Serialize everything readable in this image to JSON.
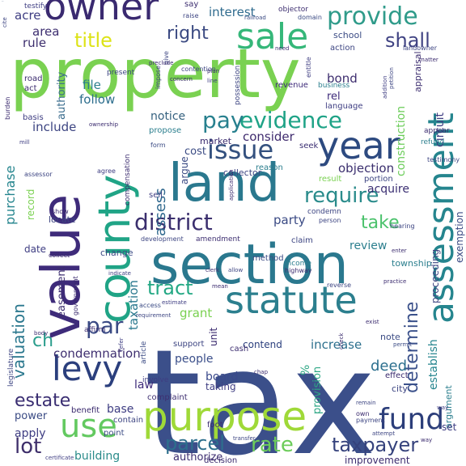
{
  "cloud": {
    "words": [
      {
        "text": "tax",
        "color": "#3b4f8a"
      },
      {
        "text": "property",
        "color": "#7ad151"
      },
      {
        "text": "land",
        "color": "#2a788e"
      },
      {
        "text": "section",
        "color": "#2a788e"
      },
      {
        "text": "value",
        "color": "#3e2b7a"
      },
      {
        "text": "county",
        "color": "#20a486"
      },
      {
        "text": "purpose",
        "color": "#9fd938"
      },
      {
        "text": "assessment",
        "color": "#25858e"
      },
      {
        "text": "statute",
        "color": "#2c7f8e"
      },
      {
        "text": "owner",
        "color": "#3a2a70"
      },
      {
        "text": "sale",
        "color": "#35b779"
      },
      {
        "text": "year",
        "color": "#2d4a80"
      },
      {
        "text": "levy",
        "color": "#2b3f7d"
      },
      {
        "text": "use",
        "color": "#63c960"
      },
      {
        "text": "provide",
        "color": "#2f9b8a"
      },
      {
        "text": "fund",
        "color": "#2c3e7a"
      },
      {
        "text": "district",
        "color": "#3b2f6e"
      },
      {
        "text": "evidence",
        "color": "#1fa387"
      },
      {
        "text": "issue",
        "color": "#34517f"
      },
      {
        "text": "pay",
        "color": "#27808e"
      },
      {
        "text": "par",
        "color": "#3a4a84"
      },
      {
        "text": "require",
        "color": "#2a8b8b"
      },
      {
        "text": "rate",
        "color": "#6ccc5a"
      },
      {
        "text": "taxpayer",
        "color": "#35427c"
      },
      {
        "text": "parcel",
        "color": "#2d6f8d"
      },
      {
        "text": "estate",
        "color": "#3a2e72"
      },
      {
        "text": "lot",
        "color": "#3f2f6b"
      },
      {
        "text": "shall",
        "color": "#404383"
      },
      {
        "text": "right",
        "color": "#3b4a82"
      },
      {
        "text": "title",
        "color": "#dde318"
      },
      {
        "text": "tract",
        "color": "#23a884"
      },
      {
        "text": "take",
        "color": "#4bc26c"
      },
      {
        "text": "valuation",
        "color": "#2b788e"
      },
      {
        "text": "ch",
        "color": "#2a9d8c"
      },
      {
        "text": "determine",
        "color": "#3b518b"
      },
      {
        "text": "condemnation",
        "color": "#3f2f70"
      },
      {
        "text": "assess",
        "color": "#30698e"
      },
      {
        "text": "taxation",
        "color": "#2a788e"
      },
      {
        "text": "purchase",
        "color": "#25858e"
      },
      {
        "text": "grant",
        "color": "#7ad151"
      },
      {
        "text": "building",
        "color": "#2a8b8a"
      },
      {
        "text": "deed",
        "color": "#2c6f8e"
      },
      {
        "text": "board",
        "color": "#3b4a8c"
      },
      {
        "text": "authority",
        "color": "#3a6c8d"
      },
      {
        "text": "include",
        "color": "#3d4582"
      },
      {
        "text": "construction",
        "color": "#6ccd5a"
      },
      {
        "text": "objection",
        "color": "#3b2f6e"
      },
      {
        "text": "consider",
        "color": "#3f2b6e"
      },
      {
        "text": "market",
        "color": "#3a2a6e"
      },
      {
        "text": "interest",
        "color": "#2f6b8e"
      },
      {
        "text": "bond",
        "color": "#3d2d6e"
      },
      {
        "text": "acre",
        "color": "#3e3d82"
      },
      {
        "text": "area",
        "color": "#3d2e70"
      },
      {
        "text": "rule",
        "color": "#3d2f6e"
      },
      {
        "text": "file",
        "color": "#2c7f8e"
      },
      {
        "text": "follow",
        "color": "#2d6e8d"
      },
      {
        "text": "notice",
        "color": "#35617f"
      },
      {
        "text": "cost",
        "color": "#3b4b84"
      },
      {
        "text": "party",
        "color": "#3a4a84"
      },
      {
        "text": "acquire",
        "color": "#3a2e72"
      },
      {
        "text": "increase",
        "color": "#2d708e"
      },
      {
        "text": "people",
        "color": "#3b4f8a"
      },
      {
        "text": "contend",
        "color": "#2b3f7d"
      },
      {
        "text": "easement",
        "color": "#3d2e70"
      },
      {
        "text": "review",
        "color": "#2c7f8e"
      },
      {
        "text": "record",
        "color": "#7ad151"
      },
      {
        "text": "provision",
        "color": "#2ea785"
      },
      {
        "text": "circuit",
        "color": "#3e3d82"
      },
      {
        "text": "exemption",
        "color": "#3b4b84"
      },
      {
        "text": "establish",
        "color": "#25858e"
      },
      {
        "text": "proceeding",
        "color": "#3d4582"
      },
      {
        "text": "argument",
        "color": "#2c7f8e"
      },
      {
        "text": "unit",
        "color": "#3a2a6e"
      },
      {
        "text": "apply",
        "color": "#3e3d82"
      },
      {
        "text": "power",
        "color": "#3a4a84"
      },
      {
        "text": "base",
        "color": "#3e3d82"
      },
      {
        "text": "law",
        "color": "#3e2b7a"
      },
      {
        "text": "authorize",
        "color": "#3d2e70"
      },
      {
        "text": "improvement",
        "color": "#3a2a6e"
      },
      {
        "text": "rel",
        "color": "#3e2b7a"
      },
      {
        "text": "school",
        "color": "#3b4b84"
      },
      {
        "text": "action",
        "color": "#3d4582"
      },
      {
        "text": "revenue",
        "color": "#3e2b7a"
      },
      {
        "text": "business",
        "color": "#2c7f8e"
      },
      {
        "text": "language",
        "color": "#3e3d82"
      },
      {
        "text": "issue",
        "color": "#34517f"
      },
      {
        "text": "cash",
        "color": "#3d2e70"
      },
      {
        "text": "date",
        "color": "#3e3d82"
      },
      {
        "text": "change",
        "color": "#3b4b84"
      },
      {
        "text": "sell",
        "color": "#3e3d82"
      },
      {
        "text": "collector",
        "color": "#3d4582"
      },
      {
        "text": "reason",
        "color": "#2c7f8e"
      },
      {
        "text": "seek",
        "color": "#3a2e72"
      },
      {
        "text": "result",
        "color": "#7ad151"
      },
      {
        "text": "portion",
        "color": "#3d4582"
      },
      {
        "text": "road",
        "color": "#3a2a6e"
      },
      {
        "text": "act",
        "color": "#3a2a6e"
      },
      {
        "text": "basis",
        "color": "#3e3d82"
      },
      {
        "text": "present",
        "color": "#3d4582"
      },
      {
        "text": "say",
        "color": "#3d2e70"
      },
      {
        "text": "raise",
        "color": "#3d4582"
      },
      {
        "text": "testify",
        "color": "#3e3d82"
      },
      {
        "text": "locate",
        "color": "#3d4582"
      },
      {
        "text": "show",
        "color": "#3a2a6e"
      },
      {
        "text": "propose",
        "color": "#2c7f8e"
      },
      {
        "text": "argue",
        "color": "#3b4b84"
      },
      {
        "text": "method",
        "color": "#3b4b84"
      },
      {
        "text": "income",
        "color": "#2c7f8e"
      },
      {
        "text": "highway",
        "color": "#3a2a6e"
      },
      {
        "text": "amendment",
        "color": "#3d2e70"
      },
      {
        "text": "development",
        "color": "#3d4582"
      },
      {
        "text": "condemn",
        "color": "#3d4582"
      },
      {
        "text": "township",
        "color": "#2c7f8e"
      },
      {
        "text": "person",
        "color": "#3d4582"
      },
      {
        "text": "claim",
        "color": "#3d4582"
      },
      {
        "text": "%",
        "color": "#2ea785"
      },
      {
        "text": "note",
        "color": "#3b4b84"
      },
      {
        "text": "city",
        "color": "#3d4582"
      },
      {
        "text": "effect",
        "color": "#3a2a6e"
      },
      {
        "text": "taking",
        "color": "#3e3d82"
      },
      {
        "text": "complaint",
        "color": "#3d2e70"
      },
      {
        "text": "benefit",
        "color": "#3a2a6e"
      },
      {
        "text": "contain",
        "color": "#3d4582"
      },
      {
        "text": "point",
        "color": "#3b4b84"
      },
      {
        "text": "foot",
        "color": "#3d2e70"
      },
      {
        "text": "decision",
        "color": "#3a2a6e"
      },
      {
        "text": "payment",
        "color": "#3d4582"
      },
      {
        "text": "set",
        "color": "#3e3d82"
      },
      {
        "text": "own",
        "color": "#3a2a6e"
      },
      {
        "text": "support",
        "color": "#3d4582"
      },
      {
        "text": "access",
        "color": "#3b4b84"
      },
      {
        "text": "appraisal",
        "color": "#3d2e70"
      },
      {
        "text": "refund",
        "color": "#2c7f8e"
      },
      {
        "text": "testimony",
        "color": "#3d4582"
      },
      {
        "text": "appear",
        "color": "#3a2a6e"
      },
      {
        "text": "agree",
        "color": "#3e3d82"
      },
      {
        "text": "assessor",
        "color": "#3d4582"
      },
      {
        "text": "form",
        "color": "#3b4b84"
      },
      {
        "text": "compensation",
        "color": "#3d2e70"
      },
      {
        "text": "burden",
        "color": "#3a2a6e"
      },
      {
        "text": "give",
        "color": "#3d4582"
      },
      {
        "text": "impose",
        "color": "#3e3d82"
      },
      {
        "text": "contention",
        "color": "#3d4582"
      },
      {
        "text": "need",
        "color": "#3a2a6e"
      },
      {
        "text": "domain",
        "color": "#3b4b84"
      },
      {
        "text": "objector",
        "color": "#3d2e70"
      },
      {
        "text": "landowner",
        "color": "#3d4582"
      },
      {
        "text": "matter",
        "color": "#3a2a6e"
      },
      {
        "text": "entitle",
        "color": "#3e3d82"
      },
      {
        "text": "legislature",
        "color": "#3d4582"
      },
      {
        "text": "government",
        "color": "#3a2a6e"
      },
      {
        "text": "affirm",
        "color": "#3d2e70"
      },
      {
        "text": "involve",
        "color": "#3e3d82"
      },
      {
        "text": "article",
        "color": "#3b4b84"
      },
      {
        "text": "hearing",
        "color": "#3d4582"
      },
      {
        "text": "exist",
        "color": "#3a2a6e"
      },
      {
        "text": "reverse",
        "color": "#3d4582"
      },
      {
        "text": "estimate",
        "color": "#3e3d82"
      },
      {
        "text": "clerk",
        "color": "#3d2e70"
      },
      {
        "text": "mean",
        "color": "#3a2a6e"
      },
      {
        "text": "remain",
        "color": "#3d4582"
      },
      {
        "text": "indicate",
        "color": "#3e3d82"
      },
      {
        "text": "collect",
        "color": "#3a2a6e"
      },
      {
        "text": "allow",
        "color": "#3d4582"
      },
      {
        "text": "permit",
        "color": "#3b4b84"
      },
      {
        "text": "chap",
        "color": "#3d2e70"
      },
      {
        "text": "body",
        "color": "#3a2a6e"
      },
      {
        "text": "transfer",
        "color": "#3d4582"
      },
      {
        "text": "certificate",
        "color": "#3e3d82"
      },
      {
        "text": "possession",
        "color": "#3d4582"
      },
      {
        "text": "ownership",
        "color": "#3a2a6e"
      },
      {
        "text": "plan",
        "color": "#3d2e70"
      },
      {
        "text": "line",
        "color": "#3e3d82"
      },
      {
        "text": "railroad",
        "color": "#3b4b84"
      },
      {
        "text": "preclude",
        "color": "#3a2a6e"
      },
      {
        "text": "cite",
        "color": "#3d4582"
      },
      {
        "text": "addition",
        "color": "#3e3d82"
      },
      {
        "text": "petition",
        "color": "#3d4582"
      },
      {
        "text": "application",
        "color": "#3a2a6e"
      },
      {
        "text": "enter",
        "color": "#3d2e70"
      },
      {
        "text": "way",
        "color": "#3e3d82"
      },
      {
        "text": "way",
        "color": "#3a2a6e"
      },
      {
        "text": "attempt",
        "color": "#3d4582"
      },
      {
        "text": "mill",
        "color": "#3e3d82"
      },
      {
        "text": "concern",
        "color": "#3a2a6e"
      },
      {
        "text": "requirement",
        "color": "#3d4582"
      },
      {
        "text": "refer",
        "color": "#3e3d82"
      },
      {
        "text": "check",
        "color": "#3d2e70"
      },
      {
        "text": "practice",
        "color": "#3a2a6e"
      }
    ]
  }
}
